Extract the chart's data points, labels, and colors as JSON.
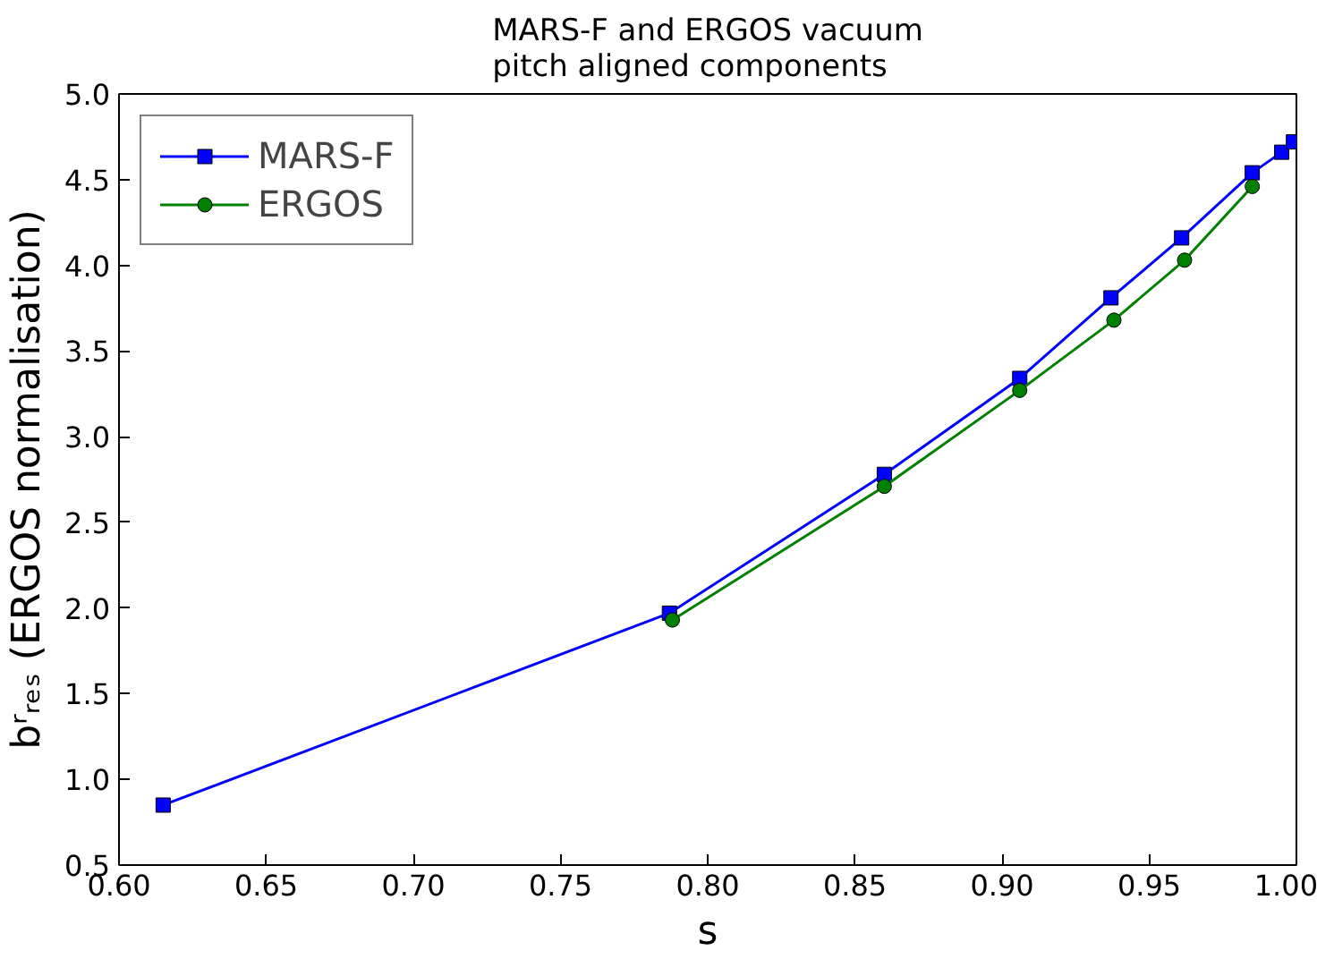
{
  "chart_data": {
    "type": "line",
    "title": "MARS-F and ERGOS vacuum\npitch aligned components",
    "xlabel": "s",
    "ylabel": "bʳᵣₑₛ (ERGOS normalisation)",
    "xlim": [
      0.6,
      1.0
    ],
    "xticks": [
      {
        "value": 0.6,
        "label": "0.60"
      },
      {
        "value": 0.65,
        "label": "0.65"
      },
      {
        "value": 0.7,
        "label": "0.70"
      },
      {
        "value": 0.75,
        "label": "0.75"
      },
      {
        "value": 0.8,
        "label": "0.80"
      },
      {
        "value": 0.85,
        "label": "0.85"
      },
      {
        "value": 0.9,
        "label": "0.90"
      },
      {
        "value": 0.95,
        "label": "0.95"
      },
      {
        "value": 1.0,
        "label": "1.00"
      }
    ],
    "ylim": [
      0.5,
      5.0
    ],
    "yticks": [
      {
        "value": 0.5,
        "label": "0.5"
      },
      {
        "value": 1.0,
        "label": "1.0"
      },
      {
        "value": 1.5,
        "label": "1.5"
      },
      {
        "value": 2.0,
        "label": "2.0"
      },
      {
        "value": 2.5,
        "label": "2.5"
      },
      {
        "value": 3.0,
        "label": "3.0"
      },
      {
        "value": 3.5,
        "label": "3.5"
      },
      {
        "value": 4.0,
        "label": "4.0"
      },
      {
        "value": 4.5,
        "label": "4.5"
      },
      {
        "value": 5.0,
        "label": "5.0"
      }
    ],
    "grid": false,
    "legend": "top left",
    "line_style": "solid",
    "series": [
      {
        "name": "MARS-F",
        "color": "#0000ff",
        "marker": "square",
        "x": [
          0.615,
          0.787,
          0.86,
          0.906,
          0.937,
          0.961,
          0.985,
          0.995,
          0.999
        ],
        "values": [
          0.85,
          1.97,
          2.78,
          3.34,
          3.81,
          4.16,
          4.54,
          4.66,
          4.72
        ]
      },
      {
        "name": "ERGOS",
        "color": "#008000",
        "marker": "circle",
        "x": [
          0.788,
          0.86,
          0.906,
          0.938,
          0.962,
          0.985
        ],
        "values": [
          1.93,
          2.71,
          3.27,
          3.68,
          4.03,
          4.46
        ]
      }
    ]
  }
}
